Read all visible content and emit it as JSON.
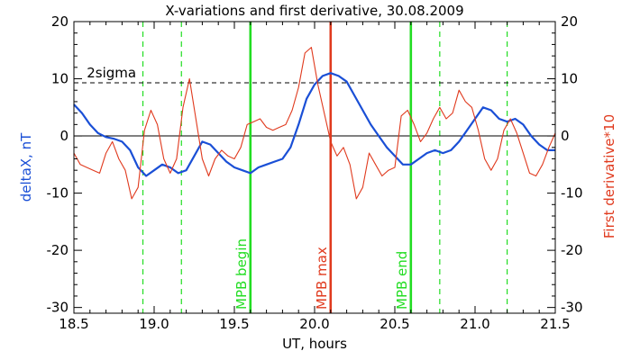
{
  "chart_data": {
    "type": "line",
    "title": "X-variations and first derivative, 30.08.2009",
    "xlabel": "UT, hours",
    "ylabel_left": "deltaX, nT",
    "ylabel_right": "First derivative*10",
    "xlim": [
      18.5,
      21.5
    ],
    "ylim_left": [
      -31,
      20
    ],
    "ylim_right": [
      -31,
      20
    ],
    "x_ticks": [
      18.5,
      19.0,
      19.5,
      20.0,
      20.5,
      21.0,
      21.5
    ],
    "x_tick_labels": [
      "18.5",
      "19.0",
      "19.5",
      "20.0",
      "20.5",
      "21.0",
      "21.5"
    ],
    "y_ticks": [
      -30,
      -20,
      -10,
      0,
      10,
      20
    ],
    "y_tick_labels": [
      "-30",
      "-20",
      "-10",
      "0",
      "10",
      "20"
    ],
    "colors": {
      "deltaX": "#1a4fd6",
      "derivative": "#e03a1e",
      "mpb_boundary": "#22dd22",
      "mpb_max": "#e03a1e",
      "zero_line": "#000000",
      "sigma_line": "#000000"
    },
    "sigma_level": 9.3,
    "sigma_label": "2sigma",
    "zero_level": 0,
    "vertical_markers": [
      {
        "x": 19.6,
        "label": "MPB begin",
        "style": "solid",
        "color": "#22dd22"
      },
      {
        "x": 20.1,
        "label": "MPB max",
        "style": "solid",
        "color": "#e03a1e"
      },
      {
        "x": 20.6,
        "label": "MPB end",
        "style": "solid",
        "color": "#22dd22"
      }
    ],
    "dashed_markers": [
      18.93,
      19.17,
      20.78,
      21.2
    ],
    "series": [
      {
        "axis": "left",
        "color": "#1a4fd6",
        "x": [
          18.5,
          18.55,
          18.6,
          18.65,
          18.7,
          18.75,
          18.8,
          18.85,
          18.9,
          18.95,
          19.0,
          19.05,
          19.1,
          19.15,
          19.2,
          19.25,
          19.3,
          19.35,
          19.4,
          19.45,
          19.5,
          19.55,
          19.6,
          19.65,
          19.7,
          19.75,
          19.8,
          19.85,
          19.9,
          19.95,
          20.0,
          20.05,
          20.1,
          20.15,
          20.2,
          20.25,
          20.3,
          20.35,
          20.4,
          20.45,
          20.5,
          20.55,
          20.6,
          20.65,
          20.7,
          20.75,
          20.8,
          20.85,
          20.9,
          20.95,
          21.0,
          21.05,
          21.1,
          21.15,
          21.2,
          21.25,
          21.3,
          21.35,
          21.4,
          21.45,
          21.5
        ],
        "y": [
          5.5,
          4.0,
          2.0,
          0.5,
          -0.2,
          -0.5,
          -1.0,
          -2.5,
          -5.5,
          -7.0,
          -6.0,
          -5.0,
          -5.5,
          -6.5,
          -6.0,
          -3.5,
          -1.0,
          -1.5,
          -3.0,
          -4.5,
          -5.5,
          -6.0,
          -6.5,
          -5.5,
          -5.0,
          -4.5,
          -4.0,
          -2.0,
          2.0,
          6.5,
          9.0,
          10.5,
          11.0,
          10.5,
          9.5,
          7.0,
          4.5,
          2.0,
          0.0,
          -2.0,
          -3.5,
          -5.0,
          -5.0,
          -4.0,
          -3.0,
          -2.5,
          -3.0,
          -2.5,
          -1.0,
          1.0,
          3.0,
          5.0,
          4.5,
          3.0,
          2.5,
          3.0,
          2.0,
          0.0,
          -1.5,
          -2.5,
          -2.5
        ]
      },
      {
        "axis": "right",
        "color": "#e03a1e",
        "x": [
          18.5,
          18.54,
          18.58,
          18.62,
          18.66,
          18.7,
          18.74,
          18.78,
          18.82,
          18.86,
          18.9,
          18.94,
          18.98,
          19.02,
          19.06,
          19.1,
          19.14,
          19.18,
          19.22,
          19.26,
          19.3,
          19.34,
          19.38,
          19.42,
          19.46,
          19.5,
          19.54,
          19.58,
          19.62,
          19.66,
          19.7,
          19.74,
          19.78,
          19.82,
          19.86,
          19.9,
          19.94,
          19.98,
          20.02,
          20.06,
          20.1,
          20.14,
          20.18,
          20.22,
          20.26,
          20.3,
          20.34,
          20.38,
          20.42,
          20.46,
          20.5,
          20.54,
          20.58,
          20.62,
          20.66,
          20.7,
          20.74,
          20.78,
          20.82,
          20.86,
          20.9,
          20.94,
          20.98,
          21.02,
          21.06,
          21.1,
          21.14,
          21.18,
          21.22,
          21.26,
          21.3,
          21.34,
          21.38,
          21.42,
          21.46,
          21.5
        ],
        "y": [
          -3.0,
          -5.0,
          -5.5,
          -6.0,
          -6.5,
          -3.0,
          -1.0,
          -4.0,
          -6.0,
          -11.0,
          -9.0,
          1.0,
          4.5,
          2.0,
          -4.0,
          -6.5,
          -4.0,
          5.0,
          10.0,
          3.0,
          -4.0,
          -7.0,
          -4.0,
          -2.5,
          -3.5,
          -4.0,
          -2.0,
          2.0,
          2.5,
          3.0,
          1.5,
          1.0,
          1.5,
          2.0,
          4.5,
          8.5,
          14.5,
          15.5,
          9.0,
          4.0,
          -1.0,
          -3.5,
          -2.0,
          -5.0,
          -11.0,
          -9.0,
          -3.0,
          -5.0,
          -7.0,
          -6.0,
          -5.5,
          3.5,
          4.5,
          2.0,
          -1.0,
          0.5,
          3.0,
          5.0,
          3.0,
          4.0,
          8.0,
          6.0,
          5.0,
          1.0,
          -4.0,
          -6.0,
          -4.0,
          1.0,
          3.0,
          0.5,
          -3.0,
          -6.5,
          -7.0,
          -5.0,
          -2.0,
          0.5
        ]
      }
    ]
  }
}
